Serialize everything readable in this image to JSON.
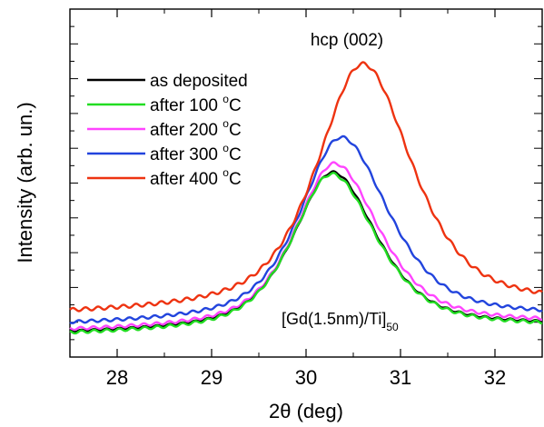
{
  "chart_data": {
    "type": "line",
    "title": "",
    "xlabel": "2θ (deg)",
    "ylabel": "Intensity (arb. un.)",
    "xlim": [
      27.5,
      32.5
    ],
    "ylim": [
      0,
      1
    ],
    "x_ticks": [
      28,
      29,
      30,
      31,
      32
    ],
    "y_ticks_labeled": false,
    "grid": false,
    "legend_position": "top-left",
    "annotations": {
      "peak_label": "hcp (002)",
      "sample_label_main": "[Gd(1.5nm)/Ti]",
      "sample_label_sub": "50"
    },
    "series": [
      {
        "name": "as deposited",
        "color": "#000000",
        "peak_x": 30.28,
        "peak_y": 0.52,
        "base_y": 0.065,
        "width_left": 0.5,
        "width_right": 0.56,
        "shift": 0.0,
        "wave": 0.003
      },
      {
        "name": "after 100 °C",
        "color": "#22dd22",
        "peak_x": 30.27,
        "peak_y": 0.515,
        "base_y": 0.062,
        "width_left": 0.5,
        "width_right": 0.57,
        "shift": 0.0,
        "wave": 0.004
      },
      {
        "name": "after 200 °C",
        "color": "#ff44ff",
        "peak_x": 30.3,
        "peak_y": 0.545,
        "base_y": 0.072,
        "width_left": 0.5,
        "width_right": 0.57,
        "shift": 0.0,
        "wave": 0.004
      },
      {
        "name": "after 300 °C",
        "color": "#2244dd",
        "peak_x": 30.37,
        "peak_y": 0.62,
        "base_y": 0.09,
        "width_left": 0.52,
        "width_right": 0.6,
        "shift": 0.0,
        "wave": 0.004
      },
      {
        "name": "after 400 °C",
        "color": "#ee3311",
        "peak_x": 30.6,
        "peak_y": 0.83,
        "base_y": 0.12,
        "width_left": 0.58,
        "width_right": 0.62,
        "shift": 0.0,
        "wave": 0.005
      }
    ],
    "legend_labels": [
      {
        "pre": "as deposited",
        "sup": "",
        "post": ""
      },
      {
        "pre": "after 100 ",
        "sup": "o",
        "post": "C"
      },
      {
        "pre": "after 200 ",
        "sup": "o",
        "post": "C"
      },
      {
        "pre": "after 300 ",
        "sup": "o",
        "post": "C"
      },
      {
        "pre": "after 400 ",
        "sup": "o",
        "post": "C"
      }
    ]
  }
}
